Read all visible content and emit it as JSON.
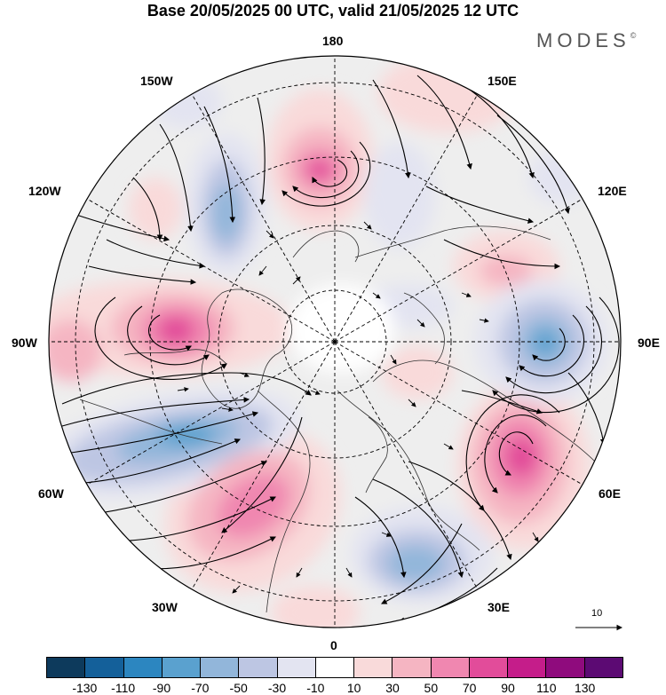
{
  "title": "Base 20/05/2025 00 UTC, valid 21/05/2025 12 UTC",
  "brand": "MODES",
  "brand_mark": "©",
  "longitude_labels": {
    "top": "180",
    "bottom": "0",
    "left": "90W",
    "right": "90E",
    "upper_left_1": "150W",
    "upper_left_2": "120W",
    "upper_right_1": "150E",
    "upper_right_2": "120E",
    "lower_left_1": "60W",
    "lower_left_2": "30W",
    "lower_right_1": "60E",
    "lower_right_2": "30E"
  },
  "reference_vector": {
    "label": "10"
  },
  "colorbar": {
    "colors": [
      "#0d3a5c",
      "#14609a",
      "#2c86c0",
      "#5aa1cf",
      "#92b6da",
      "#bdc6e3",
      "#e3e4f1",
      "#ffffff",
      "#f9dada",
      "#f5b5c2",
      "#f087b0",
      "#e24c9a",
      "#c51d8a",
      "#8f0b7d",
      "#5c0a73"
    ],
    "tick_labels": [
      "-130",
      "-110",
      "-90",
      "-70",
      "-50",
      "-30",
      "-10",
      "10",
      "30",
      "50",
      "70",
      "90",
      "110",
      "130"
    ]
  },
  "anomaly_centers": [
    {
      "name": "pink-center-180",
      "value": 90
    },
    {
      "name": "pink-center-90w",
      "value": 90
    },
    {
      "name": "pink-center-60e",
      "value": 90
    },
    {
      "name": "blue-center-90e",
      "value": -70
    },
    {
      "name": "blue-center-60w",
      "value": -90
    },
    {
      "name": "blue-center-30e",
      "value": -70
    }
  ]
}
